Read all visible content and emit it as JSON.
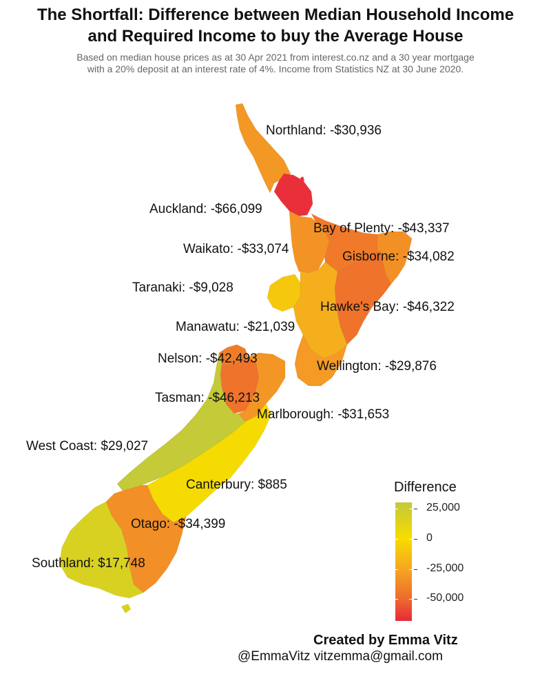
{
  "title_line1": "The Shortfall: Difference between Median Household Income",
  "title_line2": "and Required Income to buy the Average House",
  "subtitle_line1": "Based on median house prices as at 30 Apr 2021 from interest.co.nz and a 30 year mortgage",
  "subtitle_line2": "with a 20% deposit at an interest rate of 4%. Income from Statistics NZ at 30 June 2020.",
  "regions": [
    {
      "name": "Northland",
      "label": "Northland: -$30,936",
      "value": -30936
    },
    {
      "name": "Auckland",
      "label": "Auckland: -$66,099",
      "value": -66099
    },
    {
      "name": "Bay of Plenty",
      "label": "Bay of Plenty: -$43,337",
      "value": -43337
    },
    {
      "name": "Waikato",
      "label": "Waikato: -$33,074",
      "value": -33074
    },
    {
      "name": "Gisborne",
      "label": "Gisborne: -$34,082",
      "value": -34082
    },
    {
      "name": "Taranaki",
      "label": "Taranaki: -$9,028",
      "value": -9028
    },
    {
      "name": "Hawke's Bay",
      "label": "Hawke's Bay: -$46,322",
      "value": -46322
    },
    {
      "name": "Manawatu",
      "label": "Manawatu: -$21,039",
      "value": -21039
    },
    {
      "name": "Nelson",
      "label": "Nelson: -$42,493",
      "value": -42493
    },
    {
      "name": "Wellington",
      "label": "Wellington: -$29,876",
      "value": -29876
    },
    {
      "name": "Tasman",
      "label": "Tasman: -$46,213",
      "value": -46213
    },
    {
      "name": "Marlborough",
      "label": "Marlborough: -$31,653",
      "value": -31653
    },
    {
      "name": "West Coast",
      "label": "West Coast: $29,027",
      "value": 29027
    },
    {
      "name": "Canterbury",
      "label": "Canterbury: $885",
      "value": 885
    },
    {
      "name": "Otago",
      "label": "Otago: -$34,399",
      "value": -34399
    },
    {
      "name": "Southland",
      "label": "Southland: $17,748",
      "value": 17748
    }
  ],
  "legend": {
    "title": "Difference",
    "ticks": [
      "25,000",
      "0",
      "-25,000",
      "-50,000"
    ],
    "tick_values": [
      25000,
      0,
      -25000,
      -50000
    ],
    "min": -68000,
    "max": 30000,
    "colors": [
      "#c2c93a",
      "#f7dc00",
      "#f5a623",
      "#ee6a2c",
      "#e8293c"
    ]
  },
  "credit": "Created by Emma Vitz",
  "contact": "@EmmaVitz vitzemma@gmail.com"
}
